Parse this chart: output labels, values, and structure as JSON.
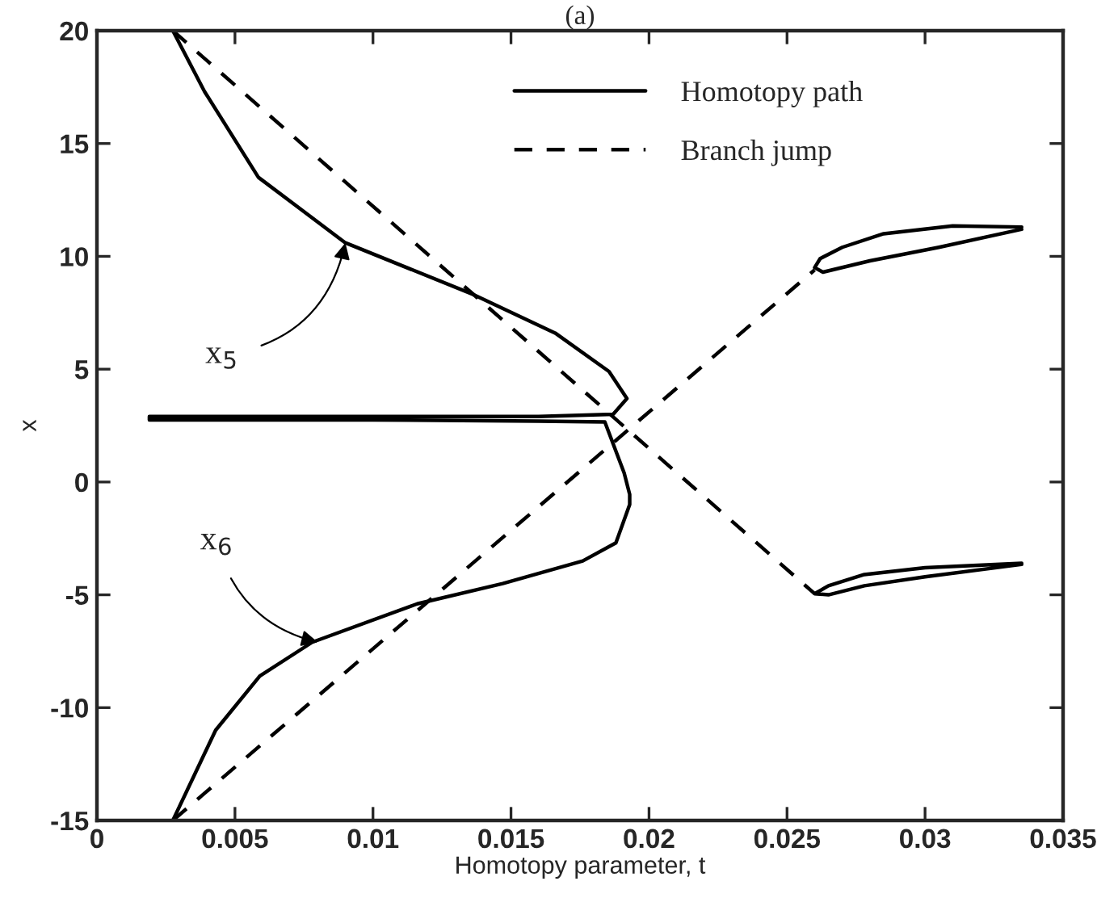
{
  "chart_data": {
    "type": "line",
    "title": "(a)",
    "xlabel": "Homotopy parameter, t",
    "ylabel": "x",
    "xlim": [
      0,
      0.035
    ],
    "xticks": [
      0,
      0.005,
      0.01,
      0.015,
      0.02,
      0.025,
      0.03,
      0.035
    ],
    "ylim": [
      -15,
      20
    ],
    "yticks": [
      -15,
      -10,
      -5,
      0,
      5,
      10,
      15,
      20
    ],
    "grid": false,
    "legend": "top right",
    "marker": "none",
    "series": [
      {
        "name": "Homotopy path",
        "color": "#000000",
        "line_style": "solid",
        "x": [
          0.00275,
          0.0039,
          0.00585,
          0.009,
          0.01365,
          0.0166,
          0.01855,
          0.0192,
          0.0187,
          0.016,
          0.01,
          0.005,
          0.0019,
          0.0019,
          0.005,
          0.01,
          0.016,
          0.0184,
          0.0191,
          0.0193,
          0.0193,
          0.0188,
          0.0176,
          0.0147,
          0.0116,
          0.0078,
          0.0059,
          0.0043,
          0.00275
        ],
        "values": [
          20,
          17.3,
          13.5,
          10.6,
          8.3,
          6.6,
          4.9,
          3.7,
          3.0,
          2.9,
          2.9,
          2.9,
          2.9,
          2.75,
          2.75,
          2.75,
          2.7,
          2.66,
          0.4,
          -0.55,
          -1.0,
          -2.7,
          -3.5,
          -4.5,
          -5.4,
          -7.1,
          -8.6,
          -11.0,
          -15
        ]
      },
      {
        "color": "#000000",
        "line_style": "solid",
        "x": [
          0.0335,
          0.031,
          0.0285,
          0.027,
          0.0262,
          0.026,
          0.0263,
          0.028,
          0.0305,
          0.0335
        ],
        "values": [
          11.3,
          11.35,
          11.0,
          10.4,
          9.9,
          9.5,
          9.3,
          9.8,
          10.4,
          11.2
        ]
      },
      {
        "color": "#000000",
        "line_style": "solid",
        "x": [
          0.0335,
          0.03,
          0.0278,
          0.0265,
          0.026,
          0.0265,
          0.0278,
          0.03,
          0.0335
        ],
        "values": [
          -3.6,
          -3.8,
          -4.1,
          -4.6,
          -4.95,
          -5.0,
          -4.6,
          -4.2,
          -3.65
        ]
      },
      {
        "name": "Branch jump",
        "color": "#000000",
        "line_style": "dashed",
        "x": [
          0.00275,
          0.026
        ],
        "values": [
          20,
          -4.95
        ]
      },
      {
        "color": "#000000",
        "line_style": "dashed",
        "x": [
          0.00275,
          0.026
        ],
        "values": [
          -15,
          9.4
        ]
      }
    ],
    "annotations": [
      {
        "text": "x$_{5}$",
        "x": 0.009,
        "y": 10.6
      },
      {
        "text": "x$_{6}$",
        "x": 0.008,
        "y": -7.1
      }
    ]
  }
}
